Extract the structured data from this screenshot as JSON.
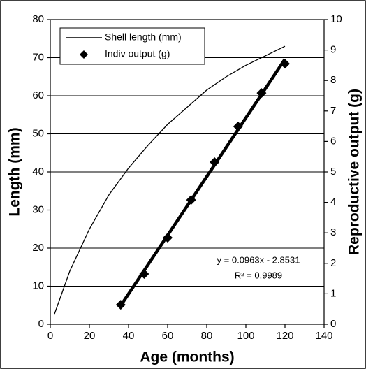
{
  "chart_data": {
    "type": "line",
    "x_label": "Age (months)",
    "y_label": "Length (mm)",
    "y2_label": "Reproductive output (g)",
    "xlim": [
      0,
      140
    ],
    "xticks": [
      0,
      20,
      40,
      60,
      80,
      100,
      120,
      140
    ],
    "ylim": [
      0,
      80
    ],
    "yticks": [
      0,
      10,
      20,
      30,
      40,
      50,
      60,
      70,
      80
    ],
    "y2lim": [
      0,
      10
    ],
    "y2ticks": [
      0,
      1,
      2,
      3,
      4,
      5,
      6,
      7,
      8,
      9,
      10
    ],
    "grid": true,
    "legend": "top-left",
    "series": [
      {
        "name": "Shell length (mm)",
        "color": "#000000",
        "style": "line",
        "axis": "y",
        "x": [
          2,
          10,
          20,
          30,
          40,
          50,
          60,
          70,
          80,
          90,
          100,
          110,
          120
        ],
        "values": [
          2.5,
          14,
          25,
          34,
          41,
          47,
          52.5,
          57,
          61.5,
          65,
          68,
          70.5,
          73
        ]
      },
      {
        "name": "Indiv output (g)",
        "color": "#000000",
        "style": "marker",
        "axis": "y2",
        "x": [
          36,
          48,
          60,
          72,
          84,
          96,
          108,
          120
        ],
        "values": [
          0.64,
          1.65,
          2.84,
          4.08,
          5.32,
          6.49,
          7.59,
          8.55
        ]
      }
    ],
    "trendline": {
      "x": [
        36,
        120
      ],
      "values": [
        0.61,
        8.7
      ],
      "color": "#000000"
    },
    "annotations": [
      "y = 0.0963x - 2.8531",
      "R² = 0.9989"
    ]
  }
}
